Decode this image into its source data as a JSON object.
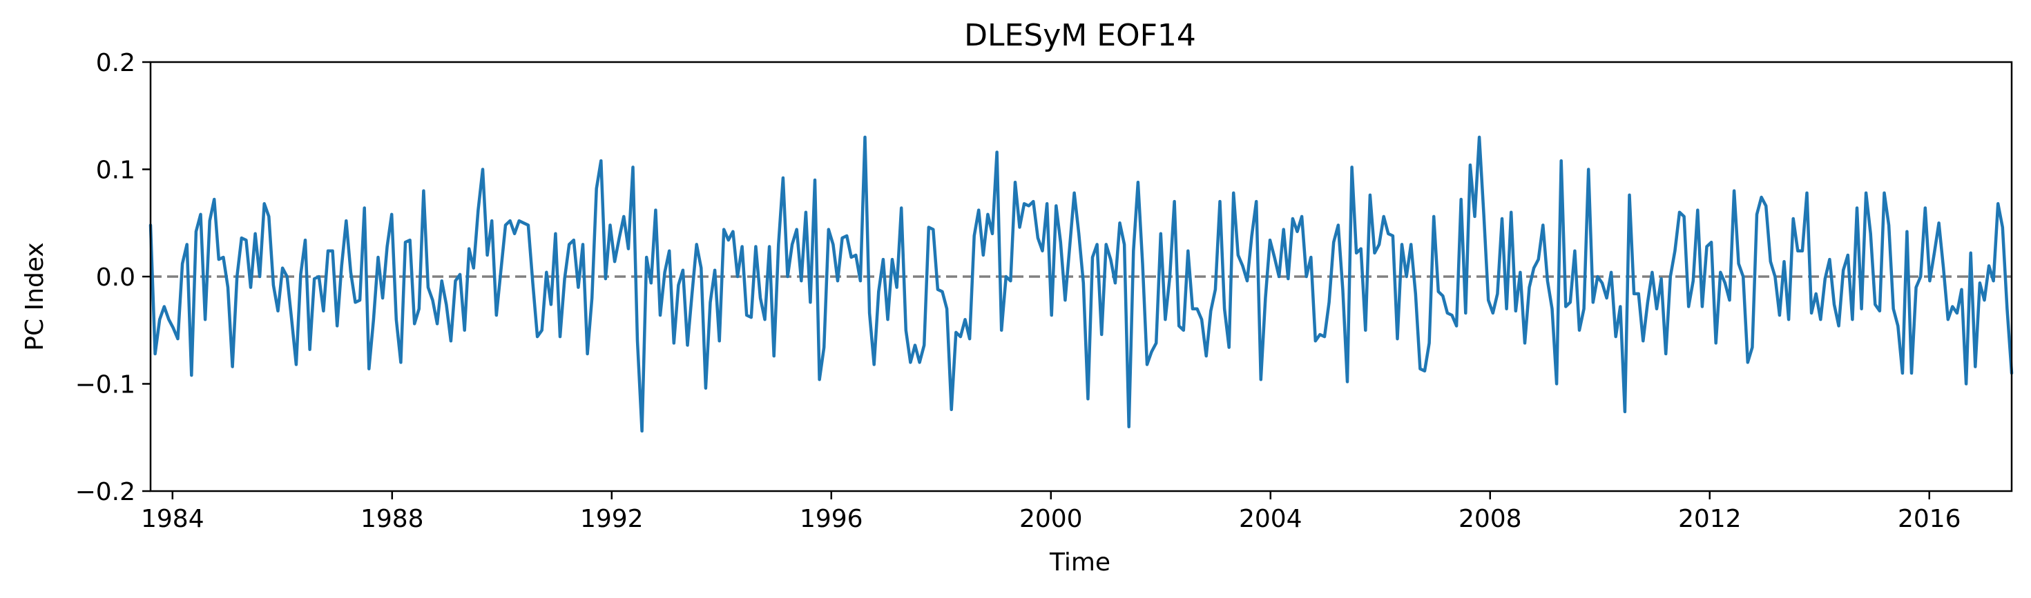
{
  "chart_data": {
    "type": "line",
    "title": "DLESyM  EOF14",
    "xlabel": "Time",
    "ylabel": "PC Index",
    "xlim": [
      1983.6,
      2017.5
    ],
    "ylim": [
      -0.2,
      0.2
    ],
    "x_ticks": [
      1984,
      1988,
      1992,
      1996,
      2000,
      2004,
      2008,
      2012,
      2016
    ],
    "x_tick_labels": [
      "1984",
      "1988",
      "1992",
      "1996",
      "2000",
      "2004",
      "2008",
      "2012",
      "2016"
    ],
    "y_ticks": [
      -0.2,
      -0.1,
      0.0,
      0.1,
      0.2
    ],
    "y_tick_labels": [
      "−0.2",
      "−0.1",
      "0.0",
      "0.1",
      "0.2"
    ],
    "reference_line": {
      "y": 0.0,
      "style": "dashed",
      "color": "#808080"
    },
    "grid": false,
    "legend": "none",
    "series": [
      {
        "color": "#1f77b4",
        "x_start": 1983.6,
        "step": 0.0833333,
        "values": [
          0.048,
          -0.072,
          -0.04,
          -0.028,
          -0.04,
          -0.048,
          -0.058,
          0.012,
          0.03,
          -0.092,
          0.042,
          0.058,
          -0.04,
          0.052,
          0.072,
          0.016,
          0.018,
          -0.01,
          -0.084,
          0.0,
          0.036,
          0.034,
          -0.01,
          0.04,
          0.0,
          0.068,
          0.056,
          -0.008,
          -0.032,
          0.008,
          0.0,
          -0.04,
          -0.082,
          0.002,
          0.034,
          -0.068,
          -0.002,
          0.0,
          -0.032,
          0.024,
          0.024,
          -0.046,
          0.01,
          0.052,
          0.004,
          -0.024,
          -0.022,
          0.064,
          -0.086,
          -0.04,
          0.018,
          -0.02,
          0.028,
          0.058,
          -0.04,
          -0.08,
          0.032,
          0.034,
          -0.044,
          -0.03,
          0.08,
          -0.01,
          -0.022,
          -0.044,
          -0.004,
          -0.026,
          -0.06,
          -0.004,
          0.002,
          -0.05,
          0.026,
          0.008,
          0.062,
          0.1,
          0.02,
          0.052,
          -0.036,
          0.006,
          0.048,
          0.052,
          0.04,
          0.052,
          0.05,
          0.048,
          -0.006,
          -0.056,
          -0.05,
          0.004,
          -0.026,
          0.04,
          -0.056,
          -0.002,
          0.03,
          0.034,
          -0.01,
          0.03,
          -0.072,
          -0.02,
          0.082,
          0.108,
          -0.002,
          0.048,
          0.014,
          0.036,
          0.056,
          0.026,
          0.102,
          -0.06,
          -0.144,
          0.018,
          -0.006,
          0.062,
          -0.036,
          0.004,
          0.024,
          -0.062,
          -0.008,
          0.006,
          -0.064,
          -0.016,
          0.03,
          0.008,
          -0.104,
          -0.024,
          0.006,
          -0.06,
          0.044,
          0.034,
          0.042,
          0.0,
          0.028,
          -0.036,
          -0.038,
          0.028,
          -0.02,
          -0.04,
          0.028,
          -0.074,
          0.03,
          0.092,
          0.0,
          0.03,
          0.044,
          -0.004,
          0.06,
          -0.024,
          0.09,
          -0.096,
          -0.066,
          0.044,
          0.03,
          -0.004,
          0.036,
          0.038,
          0.018,
          0.02,
          -0.004,
          0.13,
          -0.034,
          -0.082,
          -0.014,
          0.016,
          -0.04,
          0.016,
          -0.01,
          0.064,
          -0.05,
          -0.08,
          -0.064,
          -0.08,
          -0.064,
          0.046,
          0.044,
          -0.012,
          -0.014,
          -0.03,
          -0.124,
          -0.052,
          -0.056,
          -0.04,
          -0.058,
          0.038,
          0.062,
          0.02,
          0.058,
          0.04,
          0.116,
          -0.05,
          0.0,
          -0.004,
          0.088,
          0.046,
          0.068,
          0.066,
          0.07,
          0.036,
          0.024,
          0.068,
          -0.036,
          0.066,
          0.032,
          -0.022,
          0.028,
          0.078,
          0.04,
          -0.006,
          -0.114,
          0.018,
          0.03,
          -0.054,
          0.03,
          0.016,
          -0.006,
          0.05,
          0.03,
          -0.14,
          0.024,
          0.088,
          0.012,
          -0.082,
          -0.07,
          -0.062,
          0.04,
          -0.04,
          0.0,
          0.07,
          -0.046,
          -0.05,
          0.024,
          -0.03,
          -0.03,
          -0.04,
          -0.074,
          -0.032,
          -0.012,
          0.07,
          -0.03,
          -0.066,
          0.078,
          0.02,
          0.01,
          -0.004,
          0.038,
          0.07,
          -0.096,
          -0.02,
          0.034,
          0.018,
          0.0,
          0.044,
          -0.002,
          0.054,
          0.042,
          0.056,
          0.0,
          0.018,
          -0.06,
          -0.054,
          -0.056,
          -0.024,
          0.032,
          0.048,
          -0.012,
          -0.098,
          0.102,
          0.022,
          0.026,
          -0.05,
          0.076,
          0.022,
          0.03,
          0.056,
          0.04,
          0.038,
          -0.058,
          0.03,
          0.0,
          0.03,
          -0.016,
          -0.086,
          -0.088,
          -0.062,
          0.056,
          -0.014,
          -0.018,
          -0.034,
          -0.036,
          -0.046,
          0.072,
          -0.034,
          0.104,
          0.056,
          0.13,
          0.058,
          -0.022,
          -0.034,
          -0.016,
          0.054,
          -0.03,
          0.06,
          -0.032,
          0.004,
          -0.062,
          -0.01,
          0.008,
          0.016,
          0.048,
          -0.004,
          -0.03,
          -0.1,
          0.108,
          -0.028,
          -0.024,
          0.024,
          -0.05,
          -0.03,
          0.1,
          -0.024,
          0.0,
          -0.006,
          -0.02,
          0.004,
          -0.056,
          -0.028,
          -0.126,
          0.076,
          -0.016,
          -0.016,
          -0.06,
          -0.024,
          0.004,
          -0.03,
          -0.002,
          -0.072,
          0.0,
          0.024,
          0.06,
          0.056,
          -0.028,
          -0.004,
          0.062,
          -0.028,
          0.028,
          0.032,
          -0.062,
          0.004,
          -0.006,
          -0.022,
          0.08,
          0.012,
          0.0,
          -0.08,
          -0.066,
          0.058,
          0.074,
          0.066,
          0.014,
          0.0,
          -0.036,
          0.014,
          -0.04,
          0.054,
          0.024,
          0.024,
          0.078,
          -0.034,
          -0.016,
          -0.04,
          -0.002,
          0.016,
          -0.026,
          -0.046,
          0.006,
          0.02,
          -0.04,
          0.064,
          -0.03,
          0.078,
          0.04,
          -0.026,
          -0.032,
          0.078,
          0.048,
          -0.03,
          -0.046,
          -0.09,
          0.042,
          -0.09,
          -0.01,
          0.0,
          0.064,
          -0.004,
          0.022,
          0.05,
          0.008,
          -0.04,
          -0.028,
          -0.034,
          -0.012,
          -0.1,
          0.022,
          -0.084,
          -0.006,
          -0.022,
          0.01,
          -0.004,
          0.068,
          0.046,
          -0.03,
          -0.09
        ]
      }
    ]
  }
}
